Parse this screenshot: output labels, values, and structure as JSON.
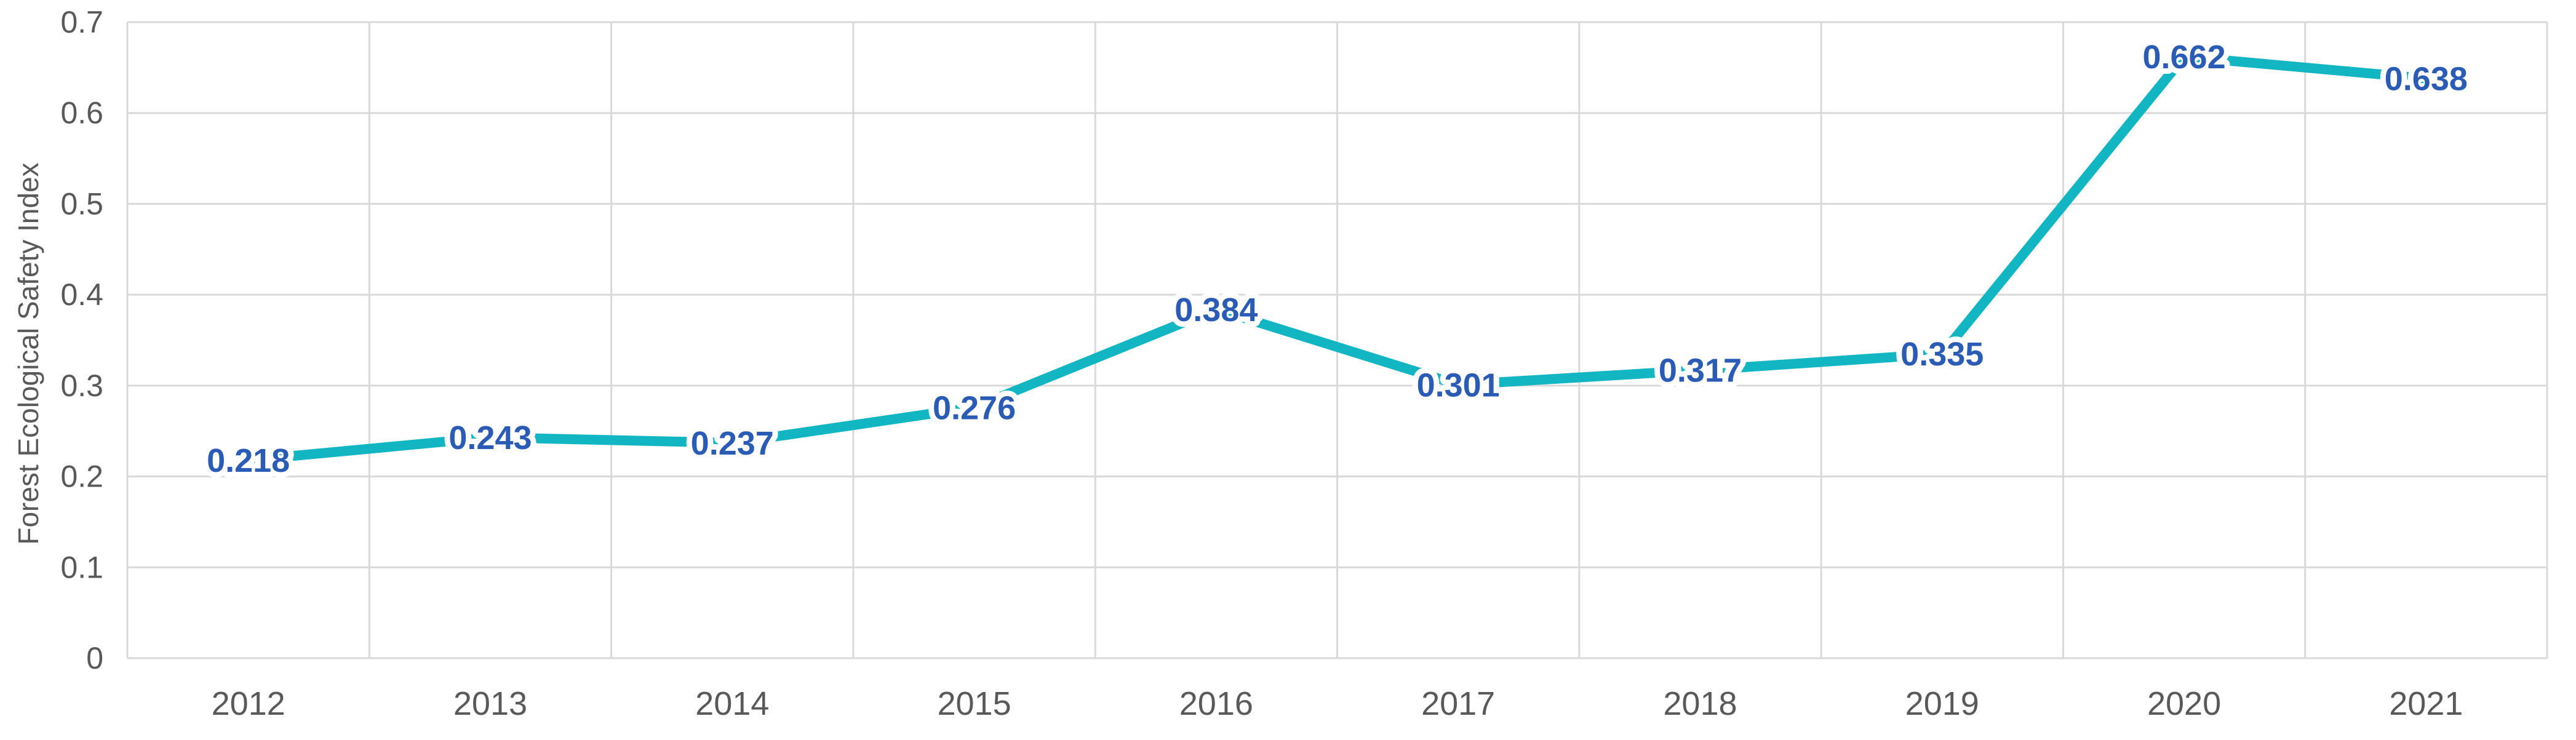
{
  "chart_data": {
    "type": "line",
    "categories": [
      "2012",
      "2013",
      "2014",
      "2015",
      "2016",
      "2017",
      "2018",
      "2019",
      "2020",
      "2021"
    ],
    "values": [
      0.218,
      0.243,
      0.237,
      0.276,
      0.384,
      0.301,
      0.317,
      0.335,
      0.662,
      0.638
    ],
    "data_labels": [
      "0.218",
      "0.243",
      "0.237",
      "0.276",
      "0.384",
      "0.301",
      "0.317",
      "0.335",
      "0.662",
      "0.638"
    ],
    "series_name": "Forest Ecological Safety Index",
    "title": "",
    "xlabel": "",
    "ylabel": "Forest Ecological Safety Index",
    "ylim": [
      0,
      0.7
    ],
    "ytick_step": 0.1,
    "ytick_labels": [
      "0",
      "0.1",
      "0.2",
      "0.3",
      "0.4",
      "0.5",
      "0.6",
      "0.7"
    ],
    "grid": true,
    "legend": false,
    "marker": "none",
    "colors": {
      "line": "#12B6C3",
      "data_label": "#2B5CB5",
      "data_label_halo": "#FFFFFF",
      "axis_text": "#595959",
      "gridline": "#D9D9D9",
      "background": "#FFFFFF"
    }
  }
}
